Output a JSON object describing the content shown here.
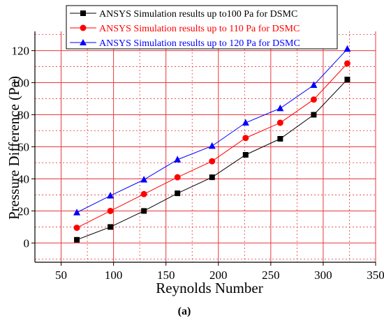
{
  "chart_data": {
    "type": "line",
    "title": "",
    "xlabel": "Reynolds Number",
    "ylabel": "Pressure Difference (Pa)",
    "caption": "(a)",
    "xlim": [
      25,
      350
    ],
    "ylim": [
      -12,
      132
    ],
    "x_ticks": [
      50,
      100,
      150,
      200,
      250,
      300,
      350
    ],
    "y_ticks": [
      0,
      20,
      40,
      60,
      80,
      100,
      120
    ],
    "grid": true,
    "grid_color": "#e8363c",
    "legend_position": "top-center",
    "series": [
      {
        "name": "ANSYS Simulation results up to100 Pa for DSMC",
        "color": "#000000",
        "marker": "square",
        "x": [
          65,
          97,
          129,
          161,
          194,
          226,
          259,
          291,
          323
        ],
        "y": [
          2,
          10,
          20,
          31,
          41,
          55,
          65,
          80,
          102
        ]
      },
      {
        "name": "ANSYS Simulation results up to 110 Pa for DSMC",
        "color": "#ff0000",
        "marker": "circle",
        "x": [
          65,
          97,
          129,
          161,
          194,
          226,
          259,
          291,
          323
        ],
        "y": [
          9.5,
          20,
          30.5,
          41,
          51,
          65.5,
          75,
          89.5,
          112
        ]
      },
      {
        "name": "ANSYS Simulation results up to 120 Pa for DSMC",
        "color": "#0000ff",
        "marker": "triangle",
        "x": [
          65,
          97,
          129,
          161,
          194,
          226,
          259,
          291,
          323
        ],
        "y": [
          19,
          29.5,
          39.5,
          52,
          60.5,
          75,
          84,
          98.5,
          121
        ]
      }
    ]
  }
}
